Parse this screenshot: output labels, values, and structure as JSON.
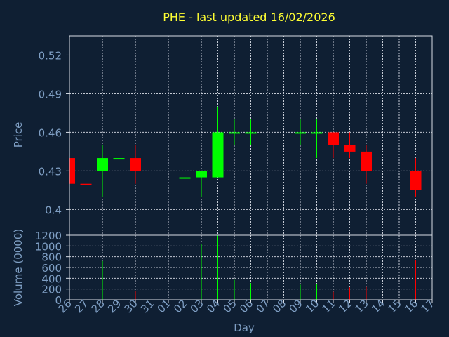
{
  "chart_data": [
    {
      "type": "candlestick",
      "title": "PHE - last updated 16/02/2026",
      "ylabel": "Price",
      "ylim": [
        0.38,
        0.535
      ],
      "y_ticks": [
        "0.52",
        "0.49",
        "0.46",
        "0.43",
        "0.4"
      ],
      "y_tick_values": [
        0.52,
        0.49,
        0.46,
        0.43,
        0.4
      ],
      "grid": true,
      "up_color": "#00ff00",
      "down_color": "#ff0000",
      "candles": [
        {
          "day": "26",
          "open": 0.44,
          "high": 0.44,
          "low": 0.42,
          "close": 0.42
        },
        {
          "day": "27",
          "open": 0.42,
          "high": 0.43,
          "low": 0.41,
          "close": 0.419
        },
        {
          "day": "28",
          "open": 0.43,
          "high": 0.45,
          "low": 0.41,
          "close": 0.44
        },
        {
          "day": "29",
          "open": 0.44,
          "high": 0.47,
          "low": 0.43,
          "close": 0.44
        },
        {
          "day": "30",
          "open": 0.44,
          "high": 0.45,
          "low": 0.42,
          "close": 0.43
        },
        {
          "day": "31",
          "open": null,
          "high": null,
          "low": null,
          "close": null
        },
        {
          "day": "01",
          "open": null,
          "high": null,
          "low": null,
          "close": null
        },
        {
          "day": "02",
          "open": 0.425,
          "high": 0.44,
          "low": 0.41,
          "close": 0.425
        },
        {
          "day": "03",
          "open": 0.425,
          "high": 0.43,
          "low": 0.41,
          "close": 0.43
        },
        {
          "day": "04",
          "open": 0.425,
          "high": 0.48,
          "low": 0.425,
          "close": 0.46
        },
        {
          "day": "05",
          "open": 0.46,
          "high": 0.47,
          "low": 0.45,
          "close": 0.46
        },
        {
          "day": "06",
          "open": 0.46,
          "high": 0.47,
          "low": 0.45,
          "close": 0.46
        },
        {
          "day": "07",
          "open": null,
          "high": null,
          "low": null,
          "close": null
        },
        {
          "day": "08",
          "open": null,
          "high": null,
          "low": null,
          "close": null
        },
        {
          "day": "09",
          "open": 0.46,
          "high": 0.47,
          "low": 0.45,
          "close": 0.46
        },
        {
          "day": "10",
          "open": 0.46,
          "high": 0.47,
          "low": 0.44,
          "close": 0.46
        },
        {
          "day": "11",
          "open": 0.46,
          "high": 0.46,
          "low": 0.44,
          "close": 0.45
        },
        {
          "day": "12",
          "open": 0.45,
          "high": 0.46,
          "low": 0.44,
          "close": 0.445
        },
        {
          "day": "13",
          "open": 0.445,
          "high": 0.45,
          "low": 0.42,
          "close": 0.43
        },
        {
          "day": "14",
          "open": null,
          "high": null,
          "low": null,
          "close": null
        },
        {
          "day": "15",
          "open": null,
          "high": null,
          "low": null,
          "close": null
        },
        {
          "day": "16",
          "open": 0.43,
          "high": 0.44,
          "low": 0.41,
          "close": 0.415
        },
        {
          "day": "17",
          "open": null,
          "high": null,
          "low": null,
          "close": null
        }
      ]
    },
    {
      "type": "bar",
      "ylabel": "Volume (0000)",
      "xlabel": "Day",
      "ylim": [
        0,
        1200
      ],
      "y_ticks": [
        "1200",
        "1000",
        "800",
        "600",
        "400",
        "200",
        "0"
      ],
      "y_tick_values": [
        1200,
        1000,
        800,
        600,
        400,
        200,
        0
      ],
      "categories": [
        "26",
        "27",
        "28",
        "29",
        "30",
        "31",
        "01",
        "02",
        "03",
        "04",
        "05",
        "06",
        "07",
        "08",
        "09",
        "10",
        "11",
        "12",
        "13",
        "14",
        "15",
        "16",
        "17"
      ],
      "values": [
        0,
        420,
        720,
        530,
        170,
        0,
        0,
        340,
        1040,
        1200,
        370,
        310,
        0,
        0,
        280,
        290,
        150,
        230,
        240,
        0,
        0,
        730,
        0
      ],
      "bar_colors": [
        "",
        "#ff0000",
        "#00ff00",
        "#00ff00",
        "#ff0000",
        "",
        "",
        "#00ff00",
        "#00ff00",
        "#00ff00",
        "#00ff00",
        "#00ff00",
        "",
        "",
        "#00ff00",
        "#00ff00",
        "#ff0000",
        "#ff0000",
        "#ff0000",
        "",
        "",
        "#ff0000",
        ""
      ]
    }
  ]
}
